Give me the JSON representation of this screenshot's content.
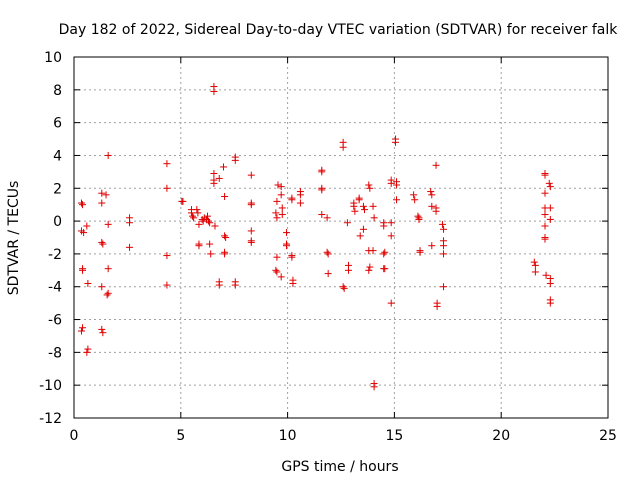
{
  "chart_data": {
    "type": "scatter",
    "title": "Day 182 of 2022, Sidereal Day-to-day VTEC variation (SDTVAR) for receiver falk",
    "xlabel": "GPS time / hours",
    "ylabel": "SDTVAR / TECUs",
    "xlim": [
      0,
      25
    ],
    "ylim": [
      -12,
      10
    ],
    "xticks": [
      0,
      5,
      10,
      15,
      20,
      25
    ],
    "yticks": [
      -12,
      -10,
      -8,
      -6,
      -4,
      -2,
      0,
      2,
      4,
      6,
      8,
      10
    ],
    "grid": true,
    "marker": "+",
    "marker_color": "#e00000",
    "series": [
      {
        "name": "SDTVAR",
        "points": [
          [
            0.35,
            1.1
          ],
          [
            0.4,
            1.0
          ],
          [
            0.35,
            -0.6
          ],
          [
            0.45,
            -0.7
          ],
          [
            0.4,
            -3.0
          ],
          [
            0.4,
            -2.9
          ],
          [
            0.4,
            -6.5
          ],
          [
            0.35,
            -6.7
          ],
          [
            0.6,
            -0.3
          ],
          [
            0.65,
            -3.8
          ],
          [
            0.65,
            -7.8
          ],
          [
            0.6,
            -8.0
          ],
          [
            1.3,
            1.7
          ],
          [
            1.3,
            1.1
          ],
          [
            1.3,
            -1.3
          ],
          [
            1.35,
            -1.4
          ],
          [
            1.3,
            -4.0
          ],
          [
            1.3,
            -6.6
          ],
          [
            1.35,
            -6.8
          ],
          [
            1.5,
            1.6
          ],
          [
            1.6,
            4.0
          ],
          [
            1.6,
            -0.2
          ],
          [
            1.6,
            -2.9
          ],
          [
            1.6,
            -4.4
          ],
          [
            1.55,
            -4.5
          ],
          [
            2.6,
            0.2
          ],
          [
            2.6,
            -0.1
          ],
          [
            2.6,
            -1.6
          ],
          [
            4.35,
            3.5
          ],
          [
            4.35,
            2.0
          ],
          [
            4.35,
            -2.1
          ],
          [
            4.35,
            -3.9
          ],
          [
            5.05,
            1.2
          ],
          [
            5.1,
            1.2
          ],
          [
            5.5,
            0.7
          ],
          [
            5.5,
            0.5
          ],
          [
            5.55,
            0.3
          ],
          [
            5.6,
            0.2
          ],
          [
            5.75,
            0.7
          ],
          [
            5.8,
            0.5
          ],
          [
            5.85,
            -0.2
          ],
          [
            5.85,
            -1.4
          ],
          [
            5.85,
            -1.5
          ],
          [
            6.0,
            0.1
          ],
          [
            6.05,
            0.0
          ],
          [
            6.1,
            0.2
          ],
          [
            6.2,
            0.1
          ],
          [
            6.25,
            0.3
          ],
          [
            6.3,
            0.0
          ],
          [
            6.35,
            -0.1
          ],
          [
            6.35,
            -1.4
          ],
          [
            6.4,
            -2.0
          ],
          [
            6.55,
            2.9
          ],
          [
            6.55,
            2.5
          ],
          [
            6.55,
            2.3
          ],
          [
            6.6,
            -0.3
          ],
          [
            6.55,
            8.2
          ],
          [
            6.55,
            7.9
          ],
          [
            6.8,
            2.6
          ],
          [
            6.8,
            -3.7
          ],
          [
            6.8,
            -3.9
          ],
          [
            7.0,
            3.3
          ],
          [
            7.05,
            1.5
          ],
          [
            7.05,
            -0.9
          ],
          [
            7.1,
            -1.0
          ],
          [
            7.05,
            -1.9
          ],
          [
            7.05,
            -2.0
          ],
          [
            7.55,
            3.9
          ],
          [
            7.55,
            3.7
          ],
          [
            7.55,
            -3.7
          ],
          [
            7.55,
            -3.9
          ],
          [
            8.3,
            2.8
          ],
          [
            8.3,
            1.1
          ],
          [
            8.3,
            1.0
          ],
          [
            8.3,
            -0.6
          ],
          [
            8.3,
            -1.3
          ],
          [
            8.3,
            -1.2
          ],
          [
            9.55,
            2.2
          ],
          [
            9.5,
            1.2
          ],
          [
            9.45,
            0.5
          ],
          [
            9.5,
            0.2
          ],
          [
            9.5,
            -2.2
          ],
          [
            9.45,
            -3.0
          ],
          [
            9.5,
            -3.1
          ],
          [
            9.7,
            2.1
          ],
          [
            9.7,
            1.6
          ],
          [
            9.75,
            0.8
          ],
          [
            9.75,
            0.4
          ],
          [
            9.7,
            -3.4
          ],
          [
            9.95,
            -0.7
          ],
          [
            9.95,
            -1.4
          ],
          [
            9.95,
            -1.5
          ],
          [
            10.2,
            1.4
          ],
          [
            10.2,
            1.3
          ],
          [
            10.2,
            -2.1
          ],
          [
            10.2,
            -2.2
          ],
          [
            10.25,
            -3.6
          ],
          [
            10.25,
            -3.8
          ],
          [
            10.6,
            1.8
          ],
          [
            10.6,
            1.6
          ],
          [
            10.6,
            1.1
          ],
          [
            11.6,
            3.1
          ],
          [
            11.6,
            3.0
          ],
          [
            11.6,
            2.0
          ],
          [
            11.6,
            1.9
          ],
          [
            11.6,
            0.4
          ],
          [
            11.85,
            0.2
          ],
          [
            11.85,
            -1.9
          ],
          [
            11.9,
            -2.0
          ],
          [
            11.9,
            -3.2
          ],
          [
            12.6,
            4.8
          ],
          [
            12.6,
            4.5
          ],
          [
            12.6,
            -4.0
          ],
          [
            12.65,
            -4.1
          ],
          [
            12.8,
            -0.1
          ],
          [
            12.85,
            -2.7
          ],
          [
            12.85,
            -3.0
          ],
          [
            13.1,
            1.1
          ],
          [
            13.1,
            0.9
          ],
          [
            13.15,
            0.6
          ],
          [
            13.35,
            1.3
          ],
          [
            13.35,
            1.4
          ],
          [
            13.4,
            -0.9
          ],
          [
            13.55,
            0.9
          ],
          [
            13.6,
            0.7
          ],
          [
            13.55,
            -0.5
          ],
          [
            13.8,
            2.2
          ],
          [
            13.85,
            2.0
          ],
          [
            13.8,
            -1.8
          ],
          [
            13.8,
            -3.0
          ],
          [
            13.85,
            -2.8
          ],
          [
            14.0,
            0.9
          ],
          [
            14.05,
            0.2
          ],
          [
            14.0,
            -1.8
          ],
          [
            14.05,
            -9.9
          ],
          [
            14.05,
            -10.1
          ],
          [
            14.5,
            -0.1
          ],
          [
            14.5,
            -0.3
          ],
          [
            14.55,
            -1.9
          ],
          [
            14.5,
            -2.0
          ],
          [
            14.55,
            -2.9
          ],
          [
            14.5,
            -2.9
          ],
          [
            14.85,
            2.5
          ],
          [
            14.85,
            2.3
          ],
          [
            14.85,
            -0.1
          ],
          [
            14.85,
            -0.9
          ],
          [
            14.85,
            -5.0
          ],
          [
            15.05,
            5.0
          ],
          [
            15.05,
            4.8
          ],
          [
            15.1,
            2.4
          ],
          [
            15.1,
            2.2
          ],
          [
            15.1,
            1.3
          ],
          [
            15.9,
            1.6
          ],
          [
            15.95,
            1.3
          ],
          [
            16.1,
            0.3
          ],
          [
            16.15,
            0.1
          ],
          [
            16.15,
            0.2
          ],
          [
            16.2,
            -1.9
          ],
          [
            16.2,
            -1.8
          ],
          [
            16.7,
            1.8
          ],
          [
            16.75,
            1.6
          ],
          [
            16.75,
            0.9
          ],
          [
            16.75,
            -1.5
          ],
          [
            16.95,
            3.4
          ],
          [
            16.95,
            0.8
          ],
          [
            16.95,
            0.6
          ],
          [
            17.0,
            -5.0
          ],
          [
            17.0,
            -5.2
          ],
          [
            17.25,
            -0.2
          ],
          [
            17.3,
            -0.5
          ],
          [
            17.3,
            -1.2
          ],
          [
            17.3,
            -1.5
          ],
          [
            17.3,
            -2.0
          ],
          [
            17.3,
            -4.0
          ],
          [
            21.55,
            -2.5
          ],
          [
            21.6,
            -2.7
          ],
          [
            21.6,
            -3.1
          ],
          [
            22.05,
            2.9
          ],
          [
            22.05,
            2.8
          ],
          [
            22.05,
            1.7
          ],
          [
            22.05,
            0.8
          ],
          [
            22.05,
            0.4
          ],
          [
            22.05,
            -0.3
          ],
          [
            22.05,
            -1.0
          ],
          [
            22.05,
            -1.1
          ],
          [
            22.1,
            -3.3
          ],
          [
            22.25,
            2.3
          ],
          [
            22.3,
            2.1
          ],
          [
            22.3,
            0.8
          ],
          [
            22.3,
            0.1
          ],
          [
            22.3,
            -3.5
          ],
          [
            22.3,
            -3.8
          ],
          [
            22.3,
            -4.8
          ],
          [
            22.3,
            -5.0
          ]
        ]
      }
    ]
  }
}
